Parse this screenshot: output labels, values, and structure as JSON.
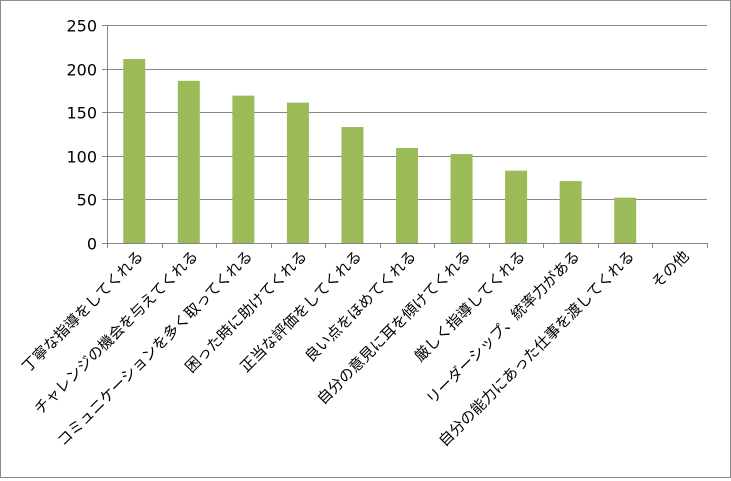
{
  "chart_data": {
    "type": "bar",
    "categories": [
      "丁寧な指導をしてくれる",
      "チャレンジの機会を与えてくれる",
      "コミュニケーションを多く取ってくれる",
      "困った時に助けてくれる",
      "正当な評価をしてくれる",
      "良い点をほめてくれる",
      "自分の意見に耳を傾けてくれる",
      "厳しく指導してくれる",
      "リーダーシップ、統率力がある",
      "自分の能力にあった仕事を渡してくれる",
      "その他"
    ],
    "values": [
      211,
      186,
      169,
      161,
      133,
      109,
      102,
      83,
      71,
      52,
      0
    ],
    "ylim": [
      0,
      250
    ],
    "yticks": [
      "0",
      "50",
      "100",
      "150",
      "200",
      "250"
    ],
    "grid": true,
    "legend": "none",
    "title": "",
    "xlabel": "",
    "ylabel": "",
    "bar_color": "#9bbb59",
    "grid_color": "#868686",
    "axis_color": "#868686"
  }
}
